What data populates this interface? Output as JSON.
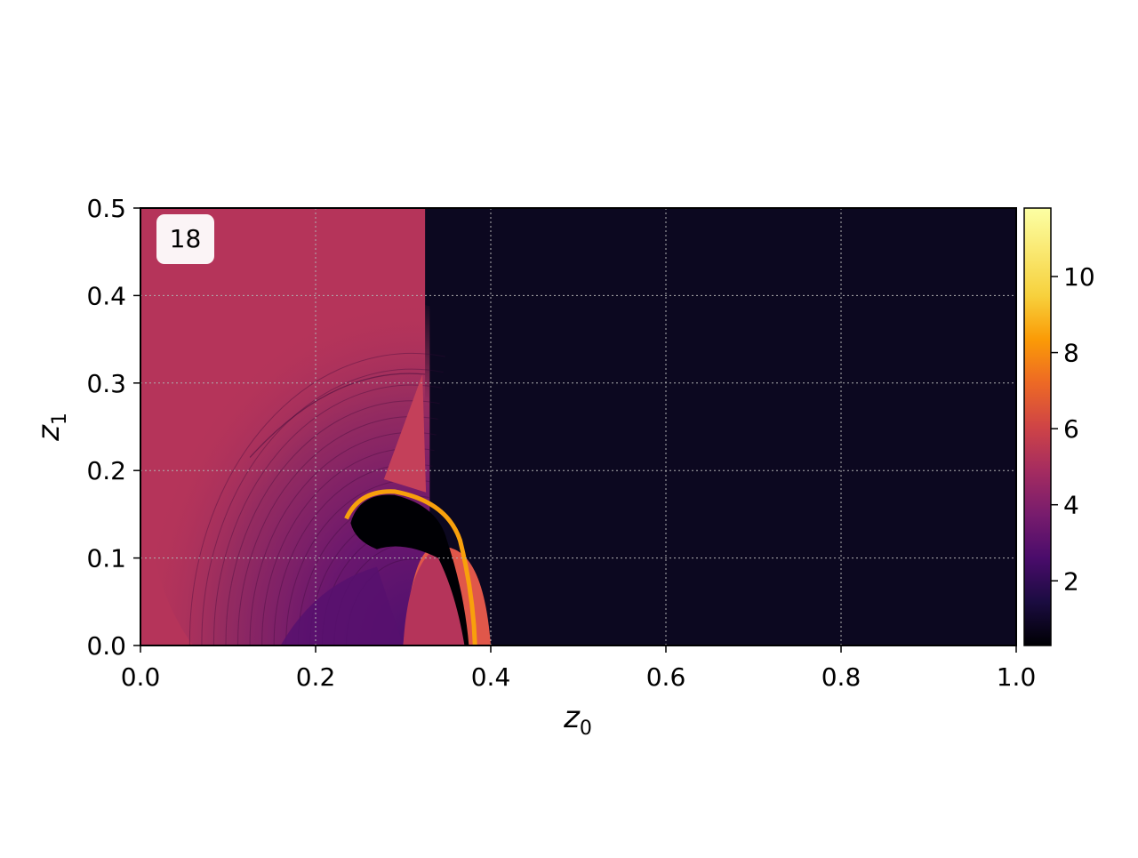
{
  "chart_data": {
    "type": "heatmap",
    "title": "",
    "annotation": "18",
    "xlabel": {
      "base": "z",
      "sub": "0"
    },
    "ylabel": {
      "base": "z",
      "sub": "1"
    },
    "xlim": [
      0.0,
      1.0
    ],
    "ylim": [
      0.0,
      0.5
    ],
    "xticks": [
      "0.0",
      "0.2",
      "0.4",
      "0.6",
      "0.8",
      "1.0"
    ],
    "yticks": [
      "0.0",
      "0.1",
      "0.2",
      "0.3",
      "0.4",
      "0.5"
    ],
    "grid": true,
    "colormap": "inferno",
    "colorbar": {
      "range": [
        0.3,
        11.8
      ],
      "ticks": [
        "2",
        "4",
        "6",
        "8",
        "10"
      ]
    },
    "regions": [
      {
        "name": "left-state",
        "z0": [
          0.0,
          0.325
        ],
        "z1": [
          0.0,
          0.5
        ],
        "value": 5.6
      },
      {
        "name": "right-state",
        "z0": [
          0.325,
          1.0
        ],
        "z1": [
          0.0,
          0.5
        ],
        "value": 0.5
      },
      {
        "name": "shocked-bubble-core",
        "z0": [
          0.25,
          0.4
        ],
        "z1": [
          0.0,
          0.18
        ],
        "value": 0.4
      },
      {
        "name": "expansion-region",
        "z0": [
          0.06,
          0.3
        ],
        "z1": [
          0.0,
          0.31
        ],
        "value": 3.5
      },
      {
        "name": "compressed-rim",
        "z0": [
          0.24,
          0.4
        ],
        "z1": [
          0.0,
          0.18
        ],
        "value": 8.5
      }
    ],
    "colors": {
      "left": "#b5345a",
      "right": "#0c0820",
      "low": "#000004",
      "mid": "#57106e",
      "high": "#f8a00c"
    }
  }
}
